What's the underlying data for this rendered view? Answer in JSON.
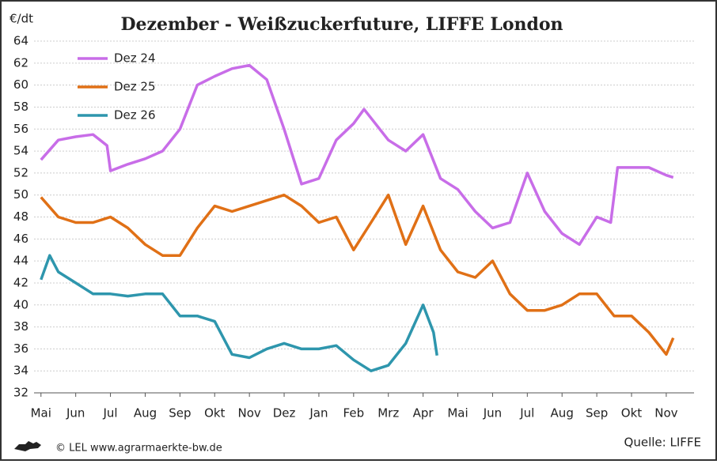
{
  "chart_data": {
    "type": "line",
    "title": "Dezember - Weißzuckerfuture, LIFFE London",
    "y_label": "€/dt",
    "source": "Quelle: LIFFE",
    "credit": "© LEL www.agrarmaerkte-bw.de",
    "xlim": [
      -0.2,
      18.8
    ],
    "xticks": [
      {
        "value": 0,
        "label": "Mai"
      },
      {
        "value": 1,
        "label": "Jun"
      },
      {
        "value": 2,
        "label": "Jul"
      },
      {
        "value": 3,
        "label": "Aug"
      },
      {
        "value": 4,
        "label": "Sep"
      },
      {
        "value": 5,
        "label": "Okt"
      },
      {
        "value": 6,
        "label": "Nov"
      },
      {
        "value": 7,
        "label": "Dez"
      },
      {
        "value": 8,
        "label": "Jan"
      },
      {
        "value": 9,
        "label": "Feb"
      },
      {
        "value": 10,
        "label": "Mrz"
      },
      {
        "value": 11,
        "label": "Apr"
      },
      {
        "value": 12,
        "label": "Mai"
      },
      {
        "value": 13,
        "label": "Jun"
      },
      {
        "value": 14,
        "label": "Jul"
      },
      {
        "value": 15,
        "label": "Aug"
      },
      {
        "value": 16,
        "label": "Sep"
      },
      {
        "value": 17,
        "label": "Okt"
      },
      {
        "value": 18,
        "label": "Nov"
      }
    ],
    "ylim": [
      32,
      64
    ],
    "yticks": [
      32,
      34,
      36,
      38,
      40,
      42,
      44,
      46,
      48,
      50,
      52,
      54,
      56,
      58,
      60,
      62,
      64
    ],
    "grid": true,
    "legend": "upper left",
    "series": [
      {
        "name": "Dez 24",
        "color": "#c86de8",
        "x": [
          0,
          0.5,
          1,
          1.5,
          1.9,
          2,
          2.5,
          3,
          3.5,
          4,
          4.5,
          5,
          5.5,
          6,
          6.5,
          7,
          7.5,
          8,
          8.5,
          9,
          9.3,
          9.5,
          10,
          10.5,
          11,
          11.5,
          12,
          12.5,
          13,
          13.5,
          14,
          14.5,
          15,
          15.5,
          16,
          16.4,
          16.6,
          17,
          17.5,
          18,
          18.2
        ],
        "values": [
          53.2,
          55,
          55.3,
          55.5,
          54.5,
          52.2,
          52.8,
          53.3,
          54,
          56,
          60,
          60.8,
          61.5,
          61.8,
          60.5,
          56,
          51,
          51.5,
          55,
          56.5,
          57.8,
          57,
          55,
          54,
          55.5,
          51.5,
          50.5,
          48.5,
          47,
          47.5,
          52,
          48.5,
          46.5,
          45.5,
          48,
          47.5,
          52.5,
          52.5,
          52.5,
          51.8,
          51.6
        ]
      },
      {
        "name": "Dez 25",
        "color": "#e07016",
        "x": [
          0,
          0.5,
          1,
          1.5,
          2,
          2.5,
          3,
          3.5,
          4,
          4.5,
          5,
          5.5,
          6,
          6.5,
          7,
          7.5,
          8,
          8.5,
          9,
          9.5,
          10,
          10.5,
          11,
          11.5,
          12,
          12.5,
          13,
          13.5,
          14,
          14.5,
          15,
          15.5,
          16,
          16.5,
          17,
          17.5,
          18,
          18.2
        ],
        "values": [
          49.8,
          48,
          47.5,
          47.5,
          48,
          47,
          45.5,
          44.5,
          44.5,
          47,
          49,
          48.5,
          49,
          49.5,
          50,
          49,
          47.5,
          48,
          45,
          47.5,
          50,
          45.5,
          49,
          45,
          43,
          42.5,
          44,
          41,
          39.5,
          39.5,
          40,
          41,
          41,
          39,
          39,
          37.5,
          35.5,
          37
        ]
      },
      {
        "name": "Dez 26",
        "color": "#2e96ad",
        "x": [
          0,
          0.25,
          0.5,
          1,
          1.5,
          2,
          2.5,
          3,
          3.5,
          4,
          4.5,
          5,
          5.5,
          6,
          6.5,
          7,
          7.5,
          8,
          8.5,
          9,
          9.5,
          10,
          10.5,
          11,
          11.3,
          11.4
        ],
        "values": [
          42.3,
          44.5,
          43,
          42,
          41,
          41,
          40.8,
          41,
          41,
          39,
          39,
          38.5,
          35.5,
          35.2,
          36,
          36.5,
          36,
          36,
          36.3,
          35,
          34,
          34.5,
          36.5,
          40,
          37.5,
          35.4
        ]
      }
    ]
  }
}
